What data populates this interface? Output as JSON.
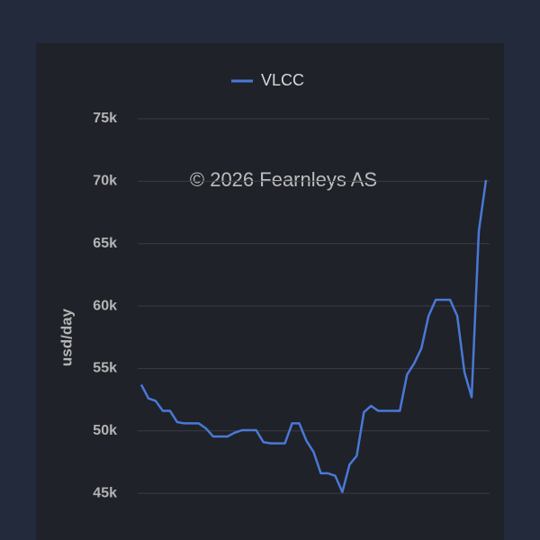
{
  "chart_data": {
    "type": "line",
    "y_label": "usd/day",
    "annotation": "© 2026 Fearnleys AS",
    "categories": [
      null,
      null,
      null,
      null,
      null,
      null,
      null,
      null,
      null,
      null,
      null,
      null,
      null,
      null,
      null,
      null,
      null,
      null,
      null,
      null,
      null,
      null,
      null,
      null,
      null,
      null,
      null,
      null,
      null,
      null,
      null,
      null,
      null,
      null,
      null,
      null,
      null,
      null,
      null,
      null,
      null,
      null,
      null,
      null,
      null,
      null,
      null,
      null,
      null
    ],
    "series": [
      {
        "name": "VLCC",
        "color": "#4a78d8",
        "values": [
          53700,
          52600,
          52400,
          51600,
          51600,
          50700,
          50600,
          50600,
          50600,
          50200,
          49550,
          49550,
          49550,
          49850,
          50050,
          50050,
          50050,
          49100,
          49000,
          49000,
          49000,
          50600,
          50600,
          49200,
          48300,
          46600,
          46600,
          46400,
          45100,
          47300,
          48000,
          51500,
          52000,
          51600,
          51600,
          51600,
          51600,
          54500,
          55400,
          56600,
          59200,
          60500,
          60500,
          60500,
          59200,
          54700,
          52700,
          66000,
          70100
        ]
      }
    ],
    "ylim": [
      42000,
      75000
    ],
    "yticks": [
      {
        "value": 45000,
        "label": "45k"
      },
      {
        "value": 50000,
        "label": "50k"
      },
      {
        "value": 55000,
        "label": "55k"
      },
      {
        "value": 60000,
        "label": "60k"
      },
      {
        "value": 65000,
        "label": "65k"
      },
      {
        "value": 70000,
        "label": "70k"
      },
      {
        "value": 75000,
        "label": "75k"
      }
    ],
    "grid": true
  }
}
